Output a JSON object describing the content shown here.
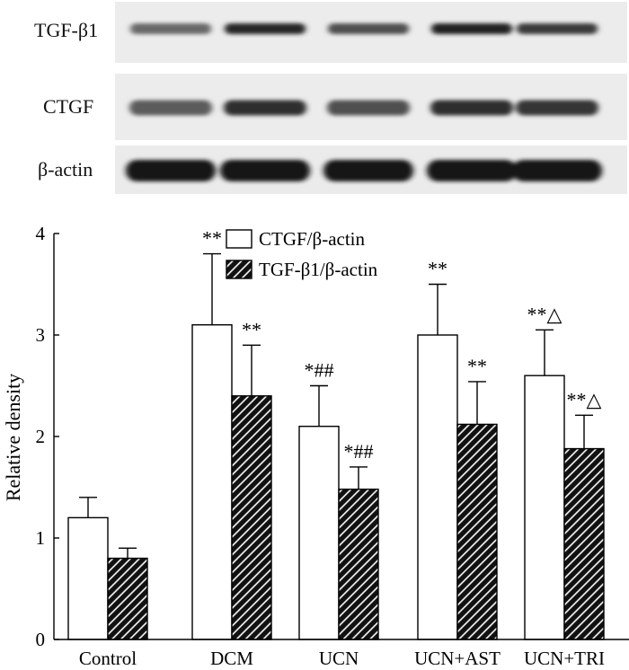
{
  "blot": {
    "rows": [
      {
        "label": "TGF-β1",
        "intensities": [
          0.35,
          0.85,
          0.55,
          0.9,
          0.7
        ]
      },
      {
        "label": "CTGF",
        "intensities": [
          0.45,
          0.8,
          0.55,
          0.8,
          0.75
        ]
      },
      {
        "label": "β-actin",
        "intensities": [
          1.0,
          1.0,
          1.0,
          1.0,
          1.0
        ]
      }
    ]
  },
  "chart_data": {
    "type": "bar",
    "categories": [
      "Control",
      "DCM",
      "UCN",
      "UCN+AST",
      "UCN+TRI"
    ],
    "series": [
      {
        "name": "CTGF/β-actin",
        "values": [
          1.2,
          3.1,
          2.1,
          3.0,
          2.6
        ],
        "errors": [
          0.2,
          0.7,
          0.4,
          0.5,
          0.45
        ],
        "annotations": [
          "",
          "**",
          "*##",
          "**",
          "**△"
        ],
        "fill": "#ffffff",
        "pattern": "none"
      },
      {
        "name": "TGF-β1/β-actin",
        "values": [
          0.8,
          2.4,
          1.48,
          2.12,
          1.88
        ],
        "errors": [
          0.1,
          0.5,
          0.22,
          0.42,
          0.33
        ],
        "annotations": [
          "",
          "**",
          "*##",
          "**",
          "**△"
        ],
        "fill": "#000000",
        "pattern": "diagonal-hatch"
      }
    ],
    "ylabel": "Relative density",
    "xlabel": "",
    "ylim": [
      0,
      4
    ],
    "yticks": [
      "0",
      "1",
      "2",
      "3",
      "4"
    ],
    "legend_placement": "top-center",
    "grid": false
  }
}
